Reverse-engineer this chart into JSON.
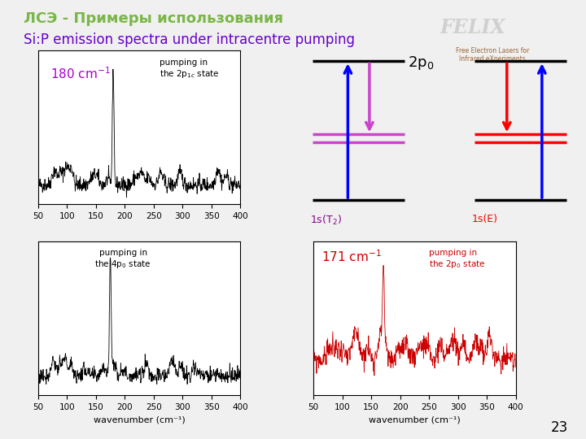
{
  "title_line1": "ЛСЭ - Примеры использования",
  "title_line2": "Si:P emission spectra under intracentre pumping",
  "title1_color": "#7ab648",
  "title2_color": "#6600cc",
  "bg_color": "#f0f0f0",
  "page_number": "23",
  "xlabel": "wavenumber (cm⁻¹)"
}
